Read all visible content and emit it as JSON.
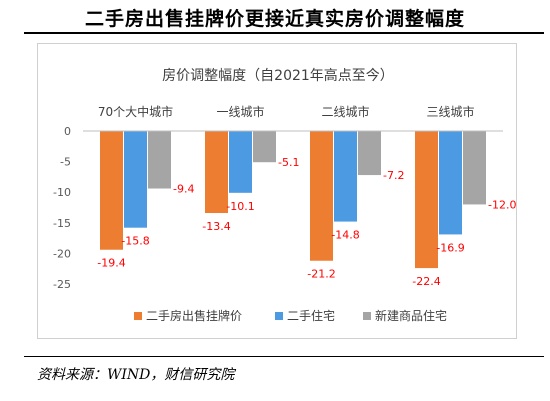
{
  "page": {
    "title": "二手房出售挂牌价更接近真实房价调整幅度",
    "source": "资料来源：WIND，财信研究院"
  },
  "colors": {
    "series_0": "#ed7d31",
    "series_1": "#4b9ae2",
    "series_2": "#a5a5a5",
    "data_label": "#ff0000"
  },
  "chart_data": {
    "type": "bar",
    "title": "房价调整幅度（自2021年高点至今）",
    "categories": [
      "70个大中城市",
      "一线城市",
      "二线城市",
      "三线城市"
    ],
    "category_axis_position": "top",
    "series": [
      {
        "name": "二手房出售挂牌价",
        "values": [
          -19.4,
          -13.4,
          -21.2,
          -22.4
        ]
      },
      {
        "name": "二手住宅",
        "values": [
          -15.8,
          -10.1,
          -14.8,
          -16.9
        ]
      },
      {
        "name": "新建商品住宅",
        "values": [
          -9.4,
          -5.1,
          -7.2,
          -12.0
        ]
      }
    ],
    "data_labels": [
      [
        "-19.4",
        "-13.4",
        "-21.2",
        "-22.4"
      ],
      [
        "-15.8",
        "-10.1",
        "-14.8",
        "-16.9"
      ],
      [
        "-9.4",
        "-5.1",
        "-7.2",
        "-12.0"
      ]
    ],
    "ylim": [
      -25,
      0
    ],
    "yticks": [
      0,
      -5,
      -10,
      -15,
      -20,
      -25
    ],
    "grid": false,
    "legend": "bottom",
    "xlabel": "",
    "ylabel": ""
  }
}
